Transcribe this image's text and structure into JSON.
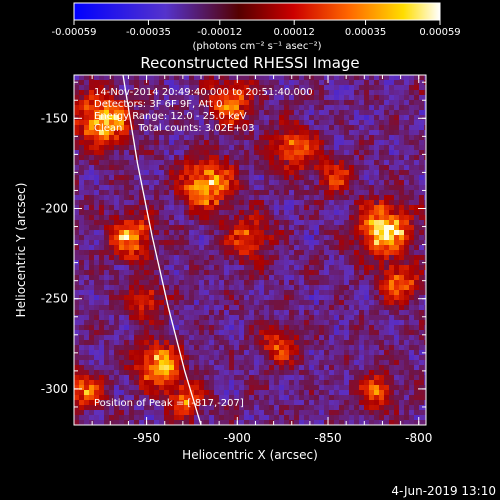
{
  "colorbar": {
    "tick_labels": [
      "-0.00059",
      "-0.00035",
      "-0.00012",
      "0.00012",
      "0.00035",
      "0.00059"
    ],
    "tick_values": [
      -0.00059,
      -0.00035,
      -0.00012,
      0.00012,
      0.00035,
      0.00059
    ],
    "range": [
      -0.00059,
      0.00059
    ],
    "unit_label": "(photons cm⁻² s⁻¹ asec⁻²)"
  },
  "chart_data": {
    "type": "heatmap",
    "title": "Reconstructed RHESSI Image",
    "xlabel": "Heliocentric X (arcsec)",
    "ylabel": "Heliocentric Y (arcsec)",
    "xlim": [
      -990,
      -796
    ],
    "ylim": [
      -320,
      -126
    ],
    "x_ticks": [
      -950,
      -900,
      -850,
      -800
    ],
    "y_ticks": [
      -150,
      -200,
      -250,
      -300
    ],
    "x_tick_labels": [
      "-950",
      "-900",
      "-850",
      "-800"
    ],
    "y_tick_labels": [
      "-150",
      "-200",
      "-250",
      "-300"
    ],
    "peak": [
      -817,
      -207
    ],
    "limb_line": [
      [
        -963,
        -126
      ],
      [
        -955,
        -175
      ],
      [
        -947,
        -215
      ],
      [
        -938,
        -255
      ],
      [
        -929,
        -290
      ],
      [
        -920,
        -320
      ]
    ]
  },
  "annotations": {
    "line1": "14-Nov-2014 20:49:40.000 to 20:51:40.000",
    "line2": "Detectors: 3F 6F 9F, Att 0",
    "line3": "Energy Range: 12.0 - 25.0 keV",
    "line4": "Clean     Total counts: 3.02E+03",
    "peak_label": "Position of Peak = [-817,-207]"
  },
  "footer": {
    "date": "4-Jun-2019 13:10"
  },
  "colors": {
    "background": "#000000",
    "low": "#0000ff",
    "mid": "#6633aa",
    "high": "#ffffff"
  }
}
